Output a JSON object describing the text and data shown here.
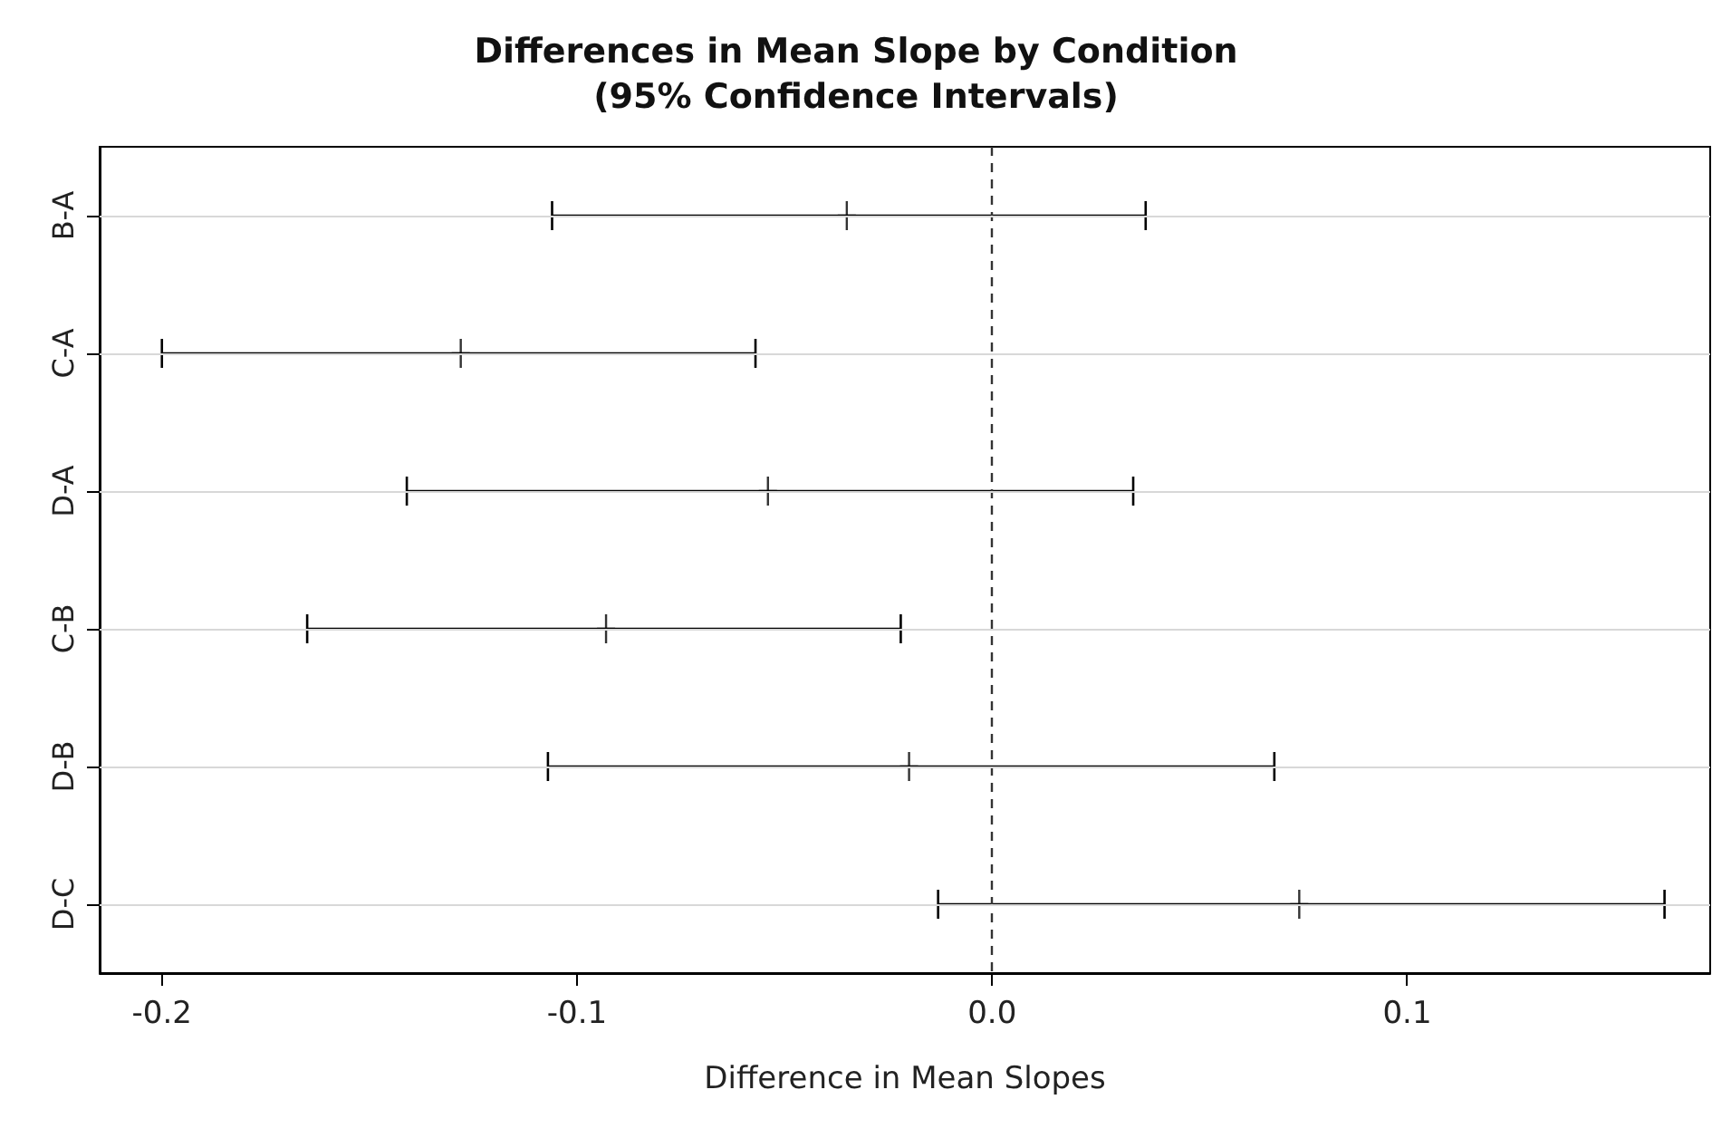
{
  "chart_data": {
    "type": "scatter",
    "title": "Differences in Mean Slope by Condition",
    "subtitle": "(95% Confidence Intervals)",
    "xlabel": "Difference in Mean Slopes",
    "orientation": "horizontal",
    "categories": [
      "B-A",
      "C-A",
      "D-A",
      "C-B",
      "D-B",
      "D-C"
    ],
    "series": [
      {
        "color": "#000000",
        "values": [
          -0.035,
          -0.128,
          -0.054,
          -0.093,
          -0.02,
          0.074
        ],
        "errors": [
          [
            -0.106,
            0.037
          ],
          [
            -0.2,
            -0.057
          ],
          [
            -0.141,
            0.034
          ],
          [
            -0.165,
            -0.022
          ],
          [
            -0.107,
            0.068
          ],
          [
            -0.013,
            0.162
          ]
        ]
      }
    ],
    "xlim": [
      -0.215,
      0.173
    ],
    "xticks": [
      -0.2,
      -0.1,
      {
        "value": 0,
        "label": "0.0"
      },
      0.1
    ],
    "ref_lines": [
      {
        "axis": "x",
        "value": 0,
        "line_style": "dashed",
        "color": "#333333"
      }
    ],
    "grid": "y",
    "marker": "cross"
  }
}
